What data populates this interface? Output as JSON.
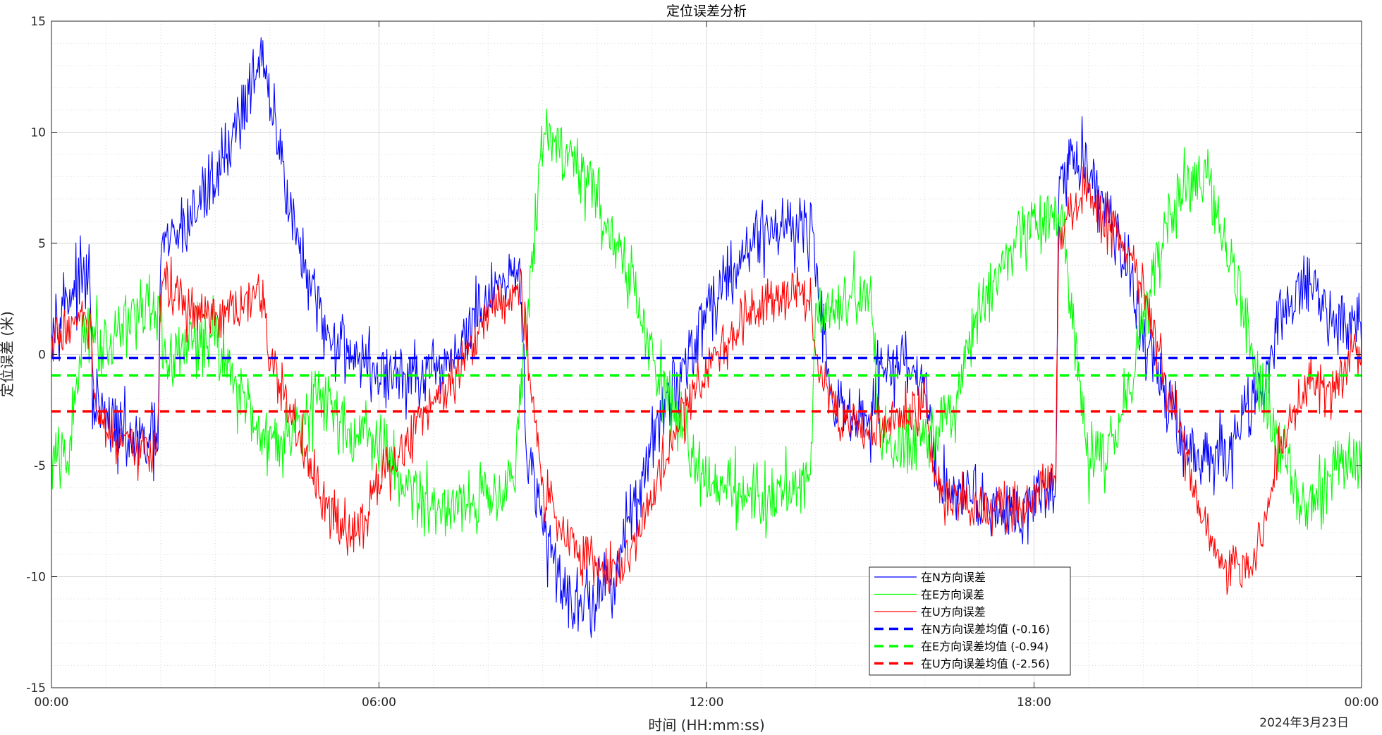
{
  "chart_data": {
    "type": "line",
    "title": "定位误差分析",
    "xlabel": "时间 (HH:mm:ss)",
    "ylabel": "定位误差 (米)",
    "date_label": "2024年3月23日",
    "x_unit": "hours",
    "xlim": [
      0,
      24
    ],
    "ylim": [
      -15,
      15
    ],
    "x_ticks": [
      0,
      6,
      12,
      18,
      24
    ],
    "x_tick_labels": [
      "00:00",
      "06:00",
      "12:00",
      "18:00",
      "00:00"
    ],
    "y_ticks": [
      -15,
      -10,
      -5,
      0,
      5,
      10,
      15
    ],
    "y_tick_labels": [
      "-15",
      "-10",
      "-5",
      "0",
      "5",
      "10",
      "15"
    ],
    "grid": true,
    "minor_grid": true,
    "legend_position": "bottom-center",
    "series": [
      {
        "name": "在N方向误差",
        "color": "#0000ff",
        "style": "solid",
        "noise": 1.6,
        "x": [
          0,
          0.4,
          0.7,
          0.75,
          1.0,
          1.5,
          1.95,
          2.0,
          2.5,
          3.0,
          3.5,
          3.8,
          4.2,
          4.6,
          5.0,
          5.3,
          5.6,
          6.0,
          6.5,
          7.0,
          7.5,
          8.0,
          8.4,
          8.6,
          8.7,
          9.0,
          9.5,
          10.0,
          10.3,
          11.0,
          11.5,
          12.0,
          12.5,
          13.0,
          13.5,
          13.9,
          14.0,
          14.3,
          15.0,
          15.1,
          15.5,
          16.0,
          16.2,
          16.5,
          17.0,
          17.5,
          18.0,
          18.4,
          18.45,
          18.7,
          19.0,
          19.5,
          20.0,
          20.5,
          21.0,
          21.5,
          22.0,
          22.3,
          22.5,
          23.0,
          23.5,
          24.0
        ],
        "y": [
          1.5,
          3.0,
          3.5,
          -2.0,
          -3.0,
          -4.0,
          -4.0,
          4.5,
          6.0,
          8.0,
          11.0,
          13.5,
          9.0,
          4.0,
          1.0,
          0.5,
          0.0,
          -1.0,
          -1.0,
          -1.2,
          0.5,
          2.5,
          3.0,
          3.5,
          -4.0,
          -8.0,
          -11.0,
          -11.0,
          -10.0,
          -4.0,
          -1.0,
          2.0,
          4.0,
          5.5,
          6.0,
          5.5,
          4.0,
          -2.0,
          -3.5,
          -1.0,
          -0.5,
          -1.0,
          -5.5,
          -6.0,
          -6.5,
          -7.0,
          -6.5,
          -6.0,
          7.5,
          9.0,
          8.5,
          5.5,
          1.0,
          -2.5,
          -5.0,
          -4.5,
          -2.0,
          -1.0,
          2.0,
          3.0,
          1.5,
          1.5
        ]
      },
      {
        "name": "在E方向误差",
        "color": "#00ff00",
        "style": "solid",
        "noise": 1.6,
        "x": [
          0,
          0.3,
          0.6,
          1.0,
          1.5,
          2.0,
          2.1,
          2.5,
          3.0,
          3.5,
          4.0,
          4.5,
          5.0,
          5.5,
          6.0,
          6.5,
          7.0,
          7.5,
          8.0,
          8.5,
          8.8,
          9.0,
          9.5,
          10.0,
          10.5,
          11.0,
          11.5,
          12.0,
          12.5,
          13.0,
          13.5,
          13.9,
          14.0,
          14.5,
          15.0,
          15.2,
          15.5,
          16.0,
          16.5,
          17.0,
          17.5,
          18.0,
          18.5,
          19.0,
          19.5,
          20.0,
          20.5,
          21.0,
          21.5,
          22.0,
          22.5,
          23.0,
          23.5,
          24.0
        ],
        "y": [
          -4.5,
          -5.0,
          1.5,
          0.5,
          2.0,
          1.5,
          -0.5,
          0.5,
          1.0,
          -2.0,
          -4.0,
          -3.0,
          -2.0,
          -3.5,
          -4.0,
          -6.0,
          -7.0,
          -6.5,
          -6.5,
          -5.0,
          4.0,
          10.0,
          9.0,
          7.0,
          4.0,
          0.0,
          -3.5,
          -5.5,
          -6.0,
          -6.5,
          -6.0,
          -5.5,
          2.0,
          2.5,
          2.5,
          -4.0,
          -4.0,
          -3.5,
          -3.0,
          2.0,
          4.0,
          6.0,
          6.0,
          -5.0,
          -4.0,
          2.0,
          6.5,
          8.5,
          5.0,
          0.0,
          -4.0,
          -7.0,
          -5.0,
          -5.0
        ]
      },
      {
        "name": "在U方向误差",
        "color": "#ff0000",
        "style": "solid",
        "noise": 1.2,
        "x": [
          0,
          0.4,
          0.7,
          0.8,
          1.0,
          1.5,
          1.95,
          2.0,
          2.5,
          3.0,
          3.5,
          3.8,
          4.0,
          4.5,
          5.0,
          5.5,
          6.0,
          6.5,
          7.0,
          7.5,
          8.0,
          8.5,
          8.6,
          8.8,
          9.0,
          9.5,
          10.0,
          10.5,
          11.0,
          11.5,
          12.0,
          12.5,
          13.0,
          13.5,
          13.9,
          14.0,
          14.5,
          15.0,
          15.5,
          16.0,
          16.2,
          16.5,
          17.0,
          17.5,
          18.0,
          18.4,
          18.45,
          18.7,
          19.0,
          19.5,
          20.0,
          20.5,
          21.0,
          21.5,
          22.0,
          22.3,
          22.5,
          23.0,
          23.5,
          24.0
        ],
        "y": [
          0.5,
          1.5,
          1.5,
          -2.5,
          -3.5,
          -4.5,
          -4.0,
          3.5,
          2.0,
          1.5,
          2.0,
          3.0,
          0.0,
          -3.5,
          -7.0,
          -8.0,
          -6.0,
          -4.0,
          -2.0,
          -0.5,
          2.0,
          3.0,
          3.0,
          -2.0,
          -6.0,
          -8.5,
          -9.5,
          -9.5,
          -6.5,
          -3.0,
          -0.5,
          1.0,
          2.5,
          3.0,
          2.5,
          0.0,
          -3.0,
          -3.5,
          -3.0,
          -2.0,
          -6.0,
          -6.5,
          -7.0,
          -7.0,
          -6.5,
          -5.0,
          5.5,
          6.5,
          7.0,
          5.5,
          3.0,
          -2.0,
          -7.0,
          -9.5,
          -9.5,
          -7.0,
          -4.0,
          -1.0,
          -1.5,
          0.5
        ]
      },
      {
        "name": "在N方向误差均值 (-0.16)",
        "color": "#0000ff",
        "style": "dashed",
        "x": [
          0,
          24
        ],
        "y": [
          -0.16,
          -0.16
        ]
      },
      {
        "name": "在E方向误差均值 (-0.94)",
        "color": "#00ff00",
        "style": "dashed",
        "x": [
          0,
          24
        ],
        "y": [
          -0.94,
          -0.94
        ]
      },
      {
        "name": "在U方向误差均值 (-2.56)",
        "color": "#ff0000",
        "style": "dashed",
        "x": [
          0,
          24
        ],
        "y": [
          -2.56,
          -2.56
        ]
      }
    ]
  }
}
